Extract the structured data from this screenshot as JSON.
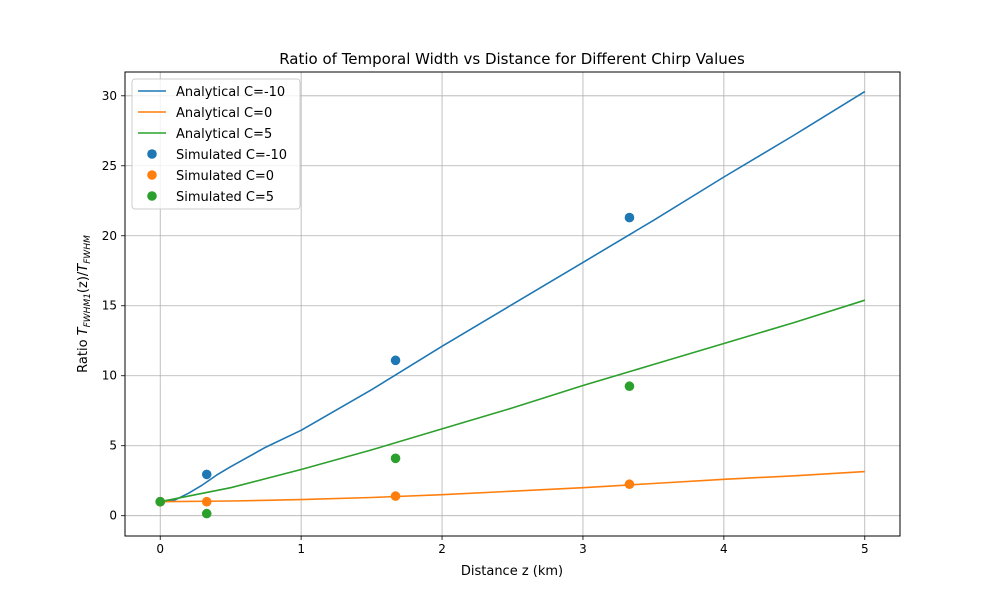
{
  "chart_data": {
    "type": "line",
    "title": "Ratio of Temporal Width vs Distance for Different Chirp Values",
    "xlabel": "Distance z (km)",
    "ylabel": "Ratio T_FWHM1(z)/T_FWHM",
    "xlim": [
      -0.25,
      5.25
    ],
    "ylim": [
      -1.45,
      31.7
    ],
    "xticks": [
      0,
      1,
      2,
      3,
      4,
      5
    ],
    "yticks": [
      0,
      5,
      10,
      15,
      20,
      25,
      30
    ],
    "grid": true,
    "legend_position": "top-left",
    "series": [
      {
        "name": "Analytical C=-10",
        "kind": "line",
        "color": "#1f77b4",
        "x": [
          0,
          0.1,
          0.2,
          0.3,
          0.4,
          0.5,
          0.75,
          1.0,
          1.5,
          2.0,
          2.5,
          3.0,
          3.5,
          4.0,
          4.5,
          5.0
        ],
        "y": [
          1.0,
          1.1,
          1.6,
          2.2,
          2.9,
          3.5,
          4.9,
          6.1,
          9.0,
          12.1,
          15.1,
          18.1,
          21.1,
          24.2,
          27.2,
          30.3
        ]
      },
      {
        "name": "Analytical C=0",
        "kind": "line",
        "color": "#ff7f0e",
        "x": [
          0,
          0.5,
          1.0,
          1.5,
          2.0,
          2.5,
          3.0,
          3.5,
          4.0,
          4.5,
          5.0
        ],
        "y": [
          1.0,
          1.05,
          1.15,
          1.3,
          1.5,
          1.75,
          2.0,
          2.3,
          2.6,
          2.85,
          3.15
        ]
      },
      {
        "name": "Analytical C=5",
        "kind": "line",
        "color": "#2ca02c",
        "x": [
          0,
          0.25,
          0.5,
          1.0,
          1.5,
          2.0,
          2.5,
          3.0,
          3.5,
          4.0,
          4.5,
          5.0
        ],
        "y": [
          1.0,
          1.5,
          2.0,
          3.3,
          4.7,
          6.2,
          7.7,
          9.3,
          10.8,
          12.3,
          13.8,
          15.4
        ]
      },
      {
        "name": "Simulated C=-10",
        "kind": "scatter",
        "color": "#1f77b4",
        "x": [
          0,
          0.33,
          1.67,
          3.33
        ],
        "y": [
          1.0,
          2.95,
          11.1,
          21.3
        ]
      },
      {
        "name": "Simulated C=0",
        "kind": "scatter",
        "color": "#ff7f0e",
        "x": [
          0,
          0.33,
          1.67,
          3.33
        ],
        "y": [
          1.0,
          1.0,
          1.4,
          2.25
        ]
      },
      {
        "name": "Simulated C=5",
        "kind": "scatter",
        "color": "#2ca02c",
        "x": [
          0,
          0.33,
          1.67,
          3.33
        ],
        "y": [
          1.0,
          0.15,
          4.1,
          9.25
        ]
      }
    ]
  }
}
